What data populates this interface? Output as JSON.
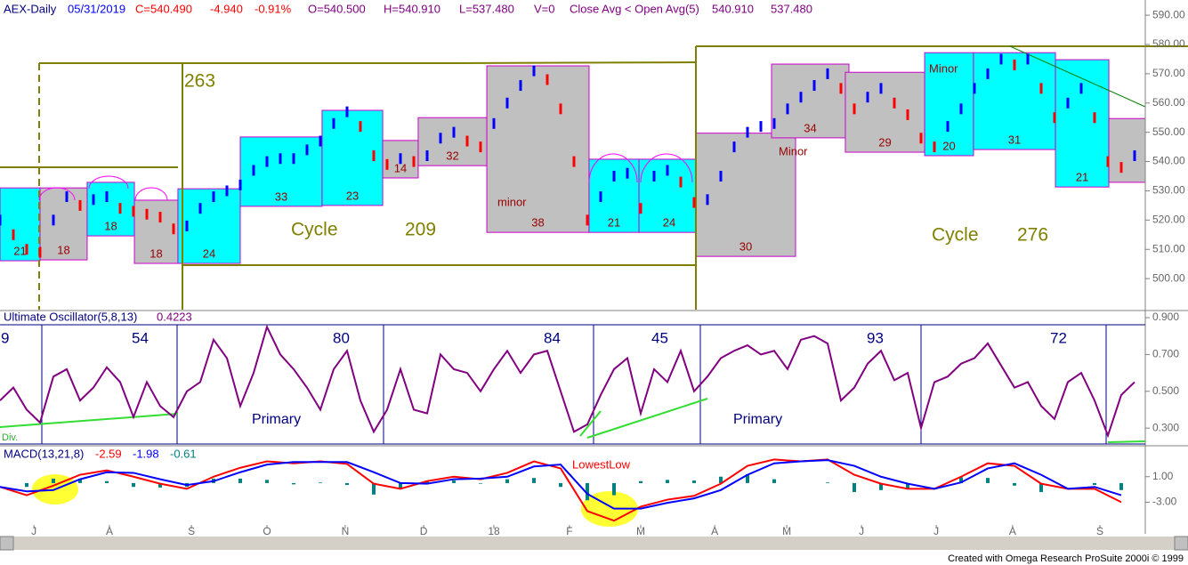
{
  "header": {
    "symbol": "AEX-Daily",
    "date": "05/31/2019",
    "close": "C=540.490",
    "change": "-4.940",
    "pct": "-0.91%",
    "open": "O=540.500",
    "high": "H=540.910",
    "low": "L=537.480",
    "volume": "V=0",
    "study": "Close Avg < Open Avg(5)",
    "study_high": "540.910",
    "study_low": "537.480"
  },
  "chart_data": [
    {
      "type": "tick",
      "color": "#0000ff",
      "down_color": "#ff0000",
      "xlim": [
        0,
        85.8
      ],
      "ylim": [
        489.4,
        595.2
      ],
      "yticks": [
        {
          "value": 500,
          "label": "500.00"
        },
        {
          "value": 510,
          "label": "510.00"
        },
        {
          "value": 520,
          "label": "520.00"
        },
        {
          "value": 530,
          "label": "530.00"
        },
        {
          "value": 540,
          "label": "540.00"
        },
        {
          "value": 550,
          "label": "550.00"
        },
        {
          "value": 560,
          "label": "560.00"
        },
        {
          "value": 570,
          "label": "570.00"
        },
        {
          "value": 580,
          "label": "580.00"
        },
        {
          "value": 590,
          "label": "590.00"
        }
      ],
      "values": [
        520,
        515,
        510,
        509,
        520,
        528,
        525,
        527,
        528,
        524,
        523,
        522,
        521,
        517,
        518,
        524,
        528,
        530,
        532,
        537,
        540,
        541,
        541,
        544,
        547,
        553,
        557,
        552,
        542,
        539,
        541,
        540,
        542,
        548,
        550,
        547,
        545,
        553,
        560,
        566,
        571,
        568,
        558,
        540,
        520,
        528,
        535,
        536,
        524,
        535,
        537,
        533,
        526,
        527,
        535,
        545,
        550,
        552,
        553,
        558,
        562,
        566,
        570,
        565,
        558,
        562,
        565,
        560,
        556,
        548,
        545,
        552,
        558,
        565,
        570,
        575,
        573,
        575,
        565,
        555,
        560,
        565,
        555,
        540,
        538,
        542
      ],
      "boxes": [
        {
          "label": "21",
          "x0": 0,
          "x1": 3,
          "y0": 506.1,
          "y1": 531.0,
          "color": "#00ffff"
        },
        {
          "label": "18",
          "x0": 3,
          "x1": 6.53,
          "y0": 506.4,
          "y1": 531.0,
          "color": "#c0c0c0"
        },
        {
          "label": "18",
          "x0": 6.53,
          "x1": 10.07,
          "y0": 514.6,
          "y1": 532.9,
          "color": "#00ffff"
        },
        {
          "label": "18",
          "x0": 10.07,
          "x1": 13.33,
          "y0": 505.2,
          "y1": 526.8,
          "color": "#c0c0c0"
        },
        {
          "label": "24",
          "x0": 13.33,
          "x1": 18,
          "y0": 505.2,
          "y1": 530.7,
          "color": "#00ffff"
        },
        {
          "label": "33",
          "x0": 18,
          "x1": 24.13,
          "y0": 524.7,
          "y1": 548.4,
          "color": "#00ffff"
        },
        {
          "label": "23",
          "x0": 24.13,
          "x1": 28.67,
          "y0": 525.0,
          "y1": 557.5,
          "color": "#00ffff"
        },
        {
          "label": "14",
          "x0": 28.67,
          "x1": 31.33,
          "y0": 534.4,
          "y1": 547.2,
          "color": "#c0c0c0"
        },
        {
          "label": "32",
          "x0": 31.33,
          "x1": 36.47,
          "y0": 538.6,
          "y1": 555.0,
          "color": "#c0c0c0"
        },
        {
          "label": "38",
          "x0": 36.47,
          "x1": 44.13,
          "y0": 515.8,
          "y1": 572.7,
          "color": "#c0c0c0"
        },
        {
          "label": "21",
          "x0": 44.13,
          "x1": 47.87,
          "y0": 515.8,
          "y1": 540.8,
          "color": "#00ffff"
        },
        {
          "label": "24",
          "x0": 47.87,
          "x1": 52.4,
          "y0": 515.8,
          "y1": 540.8,
          "color": "#00ffff"
        },
        {
          "label": "30",
          "x0": 52.13,
          "x1": 59.6,
          "y0": 507.6,
          "y1": 549.7,
          "color": "#c0c0c0"
        },
        {
          "label": "34",
          "x0": 57.8,
          "x1": 63.6,
          "y0": 548.1,
          "y1": 573.3,
          "color": "#c0c0c0"
        },
        {
          "label": "29",
          "x0": 63.33,
          "x1": 69.27,
          "y0": 543.2,
          "y1": 570.5,
          "color": "#c0c0c0"
        },
        {
          "label": "20",
          "x0": 69.27,
          "x1": 72.93,
          "y0": 542.0,
          "y1": 577.2,
          "color": "#00ffff"
        },
        {
          "label": "31",
          "x0": 72.93,
          "x1": 79.07,
          "y0": 544.1,
          "y1": 577.2,
          "color": "#00ffff"
        },
        {
          "label": "21",
          "x0": 79.07,
          "x1": 83.07,
          "y0": 531.3,
          "y1": 574.8,
          "color": "#00ffff"
        },
        {
          "x0": 83.07,
          "x1": 85.8,
          "y0": 532.9,
          "y1": 554.7,
          "color": "#c0c0c0"
        }
      ],
      "annotations": [
        "263",
        "Cycle",
        "209",
        "Cycle",
        "276",
        "minor",
        "Minor",
        "Minor"
      ]
    },
    {
      "type": "line",
      "title": "Ultimate Oscillator(5,8,13)",
      "last_value": "0.4223",
      "color": "#800080",
      "xlim": [
        0,
        85.8
      ],
      "ylim": [
        0.209,
        0.929
      ],
      "yticks": [
        {
          "value": 0.9,
          "label": "0.900"
        },
        {
          "value": 0.7,
          "label": "0.700"
        },
        {
          "value": 0.5,
          "label": "0.500"
        },
        {
          "value": 0.3,
          "label": "0.300"
        }
      ],
      "values": [
        0.45,
        0.52,
        0.4,
        0.33,
        0.58,
        0.62,
        0.45,
        0.52,
        0.63,
        0.55,
        0.36,
        0.55,
        0.42,
        0.36,
        0.5,
        0.55,
        0.78,
        0.68,
        0.42,
        0.6,
        0.85,
        0.7,
        0.62,
        0.52,
        0.4,
        0.62,
        0.72,
        0.45,
        0.28,
        0.4,
        0.62,
        0.4,
        0.38,
        0.7,
        0.62,
        0.6,
        0.5,
        0.62,
        0.72,
        0.6,
        0.7,
        0.72,
        0.5,
        0.28,
        0.32,
        0.48,
        0.62,
        0.68,
        0.38,
        0.62,
        0.55,
        0.72,
        0.5,
        0.58,
        0.68,
        0.72,
        0.75,
        0.7,
        0.72,
        0.62,
        0.78,
        0.8,
        0.76,
        0.45,
        0.52,
        0.65,
        0.72,
        0.56,
        0.6,
        0.3,
        0.55,
        0.58,
        0.65,
        0.68,
        0.76,
        0.64,
        0.52,
        0.55,
        0.42,
        0.35,
        0.55,
        0.6,
        0.45,
        0.26,
        0.48,
        0.55
      ],
      "cycle_labels": [
        "9",
        "54",
        "80",
        "84",
        "45",
        "93",
        "72"
      ],
      "annotations": [
        "Primary",
        "Primary",
        "Div."
      ]
    },
    {
      "type": "line",
      "title": "MACD(13,21,8)",
      "readouts": [
        "-2.59",
        "-1.98",
        "-0.61"
      ],
      "xlim": [
        0,
        42.9
      ],
      "ylim": [
        -6.57,
        5.57
      ],
      "yticks": [
        {
          "value": 1,
          "label": "1.00"
        },
        {
          "value": -3,
          "label": "-3.00"
        }
      ],
      "xticks": [
        {
          "value": 1.27,
          "label": "J"
        },
        {
          "value": 4.1,
          "label": "A"
        },
        {
          "value": 7.17,
          "label": "S"
        },
        {
          "value": 10,
          "label": "O"
        },
        {
          "value": 12.93,
          "label": "N"
        },
        {
          "value": 15.87,
          "label": "D"
        },
        {
          "value": 18.5,
          "label": "18"
        },
        {
          "value": 21.33,
          "label": "F"
        },
        {
          "value": 24,
          "label": "M"
        },
        {
          "value": 26.77,
          "label": "A"
        },
        {
          "value": 29.47,
          "label": "M"
        },
        {
          "value": 32.27,
          "label": "J"
        },
        {
          "value": 35.07,
          "label": "J"
        },
        {
          "value": 37.93,
          "label": "A"
        },
        {
          "value": 41.2,
          "label": "S"
        }
      ],
      "series": [
        {
          "color": "#ff0000",
          "values": [
            -0.6,
            -1.9,
            -0.4,
            1.3,
            2.0,
            1.0,
            -0.1,
            -0.9,
            1.0,
            2.4,
            3.4,
            3.1,
            3.4,
            3.0,
            -0.1,
            -0.9,
            0.3,
            1.0,
            0.6,
            1.6,
            3.4,
            2.3,
            -4.4,
            -5.9,
            -3.7,
            -2.6,
            -2.0,
            -0.1,
            2.7,
            3.7,
            3.4,
            3.7,
            1.3,
            -0.1,
            -0.9,
            -0.9,
            1.0,
            3.1,
            2.7,
            -0.1,
            -0.9,
            -0.9,
            -3.0
          ]
        },
        {
          "color": "#0000ff",
          "values": [
            -0.6,
            -1.3,
            -1.1,
            0.6,
            1.7,
            1.6,
            0.6,
            -0.3,
            0.3,
            1.7,
            2.9,
            3.3,
            3.3,
            3.3,
            1.7,
            0.0,
            -0.1,
            0.6,
            0.7,
            1.0,
            2.6,
            2.9,
            -1.7,
            -4.0,
            -4.0,
            -3.1,
            -2.4,
            -1.1,
            1.3,
            3.1,
            3.4,
            3.6,
            2.7,
            1.0,
            -0.1,
            -0.9,
            0.1,
            2.3,
            3.1,
            1.3,
            -0.9,
            -0.6,
            -1.9
          ]
        },
        {
          "color": "#008080",
          "type": "bar",
          "values": [
            0,
            -0.6,
            0.7,
            0.7,
            0.3,
            -0.6,
            -0.7,
            -0.6,
            0.7,
            0.7,
            0.5,
            -0.2,
            0.1,
            -0.3,
            -1.8,
            -0.9,
            0.4,
            0.4,
            -0.1,
            0.6,
            0.8,
            -0.6,
            -2.7,
            -1.9,
            0.3,
            0.5,
            0.4,
            1.0,
            1.4,
            0.6,
            0,
            0.1,
            -1.4,
            -1.1,
            -0.8,
            0,
            0.9,
            0.8,
            -0.4,
            -1.4,
            0,
            -0.3,
            -1.1
          ]
        }
      ],
      "annotations": [
        "LowestLow"
      ]
    }
  ],
  "footer": "Created with Omega Research ProSuite 2000i © 1999"
}
